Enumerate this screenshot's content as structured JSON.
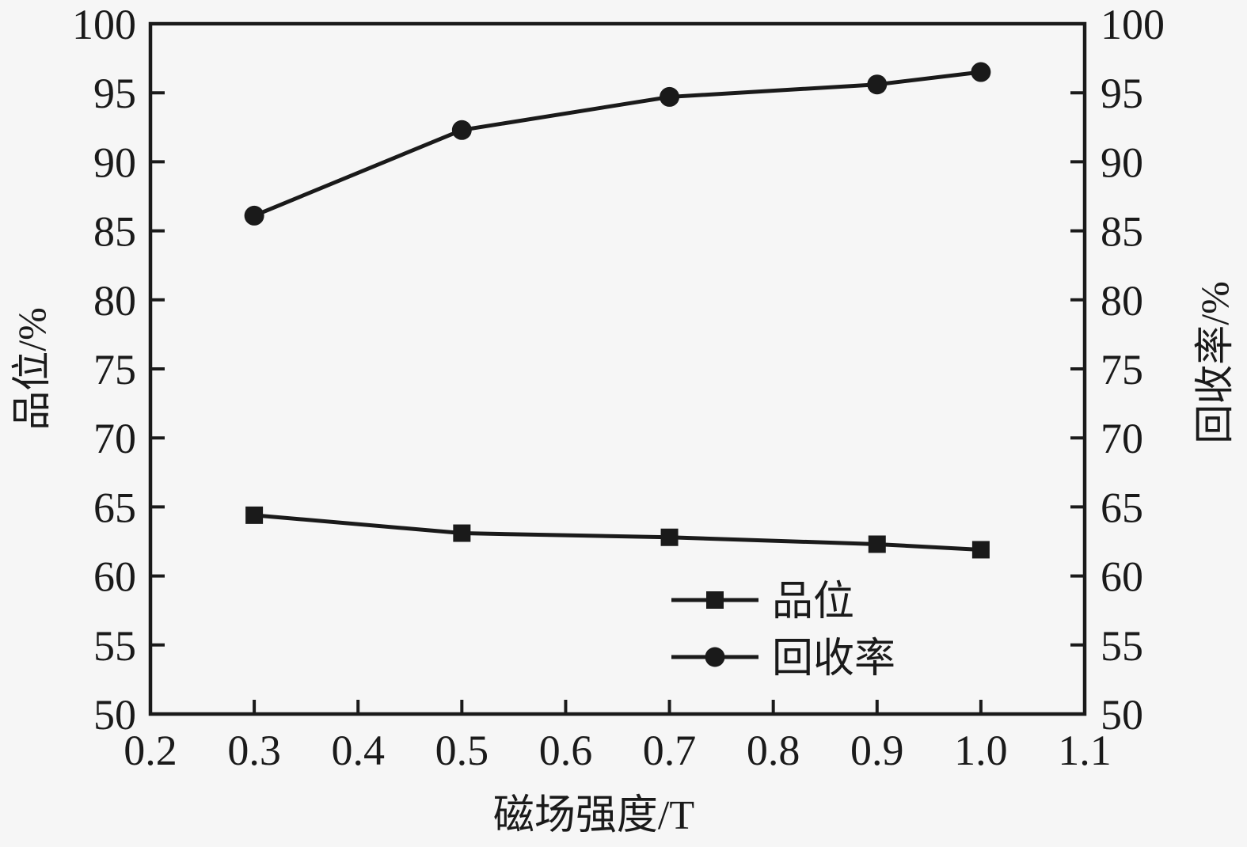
{
  "figure": {
    "bg_color": "#f6f6f6",
    "fg_color": "#1a1a1a"
  },
  "chart_data": {
    "type": "line",
    "title": "",
    "xlabel": "磁场强度/T",
    "ylabel_left": "品位/%",
    "ylabel_right": "回收率/%",
    "xlim": [
      0.2,
      1.1
    ],
    "ylim_left": [
      50,
      100
    ],
    "ylim_right": [
      50,
      100
    ],
    "x_tick_labels": [
      "0.2",
      "0.3",
      "0.4",
      "0.5",
      "0.6",
      "0.7",
      "0.8",
      "0.9",
      "1.0",
      "1.1"
    ],
    "y_tick_labels_left": [
      "50",
      "55",
      "60",
      "65",
      "70",
      "75",
      "80",
      "85",
      "90",
      "95",
      "100"
    ],
    "y_tick_labels_right": [
      "50",
      "55",
      "60",
      "65",
      "70",
      "75",
      "80",
      "85",
      "90",
      "95",
      "100"
    ],
    "x": [
      0.3,
      0.5,
      0.7,
      0.9,
      1.0
    ],
    "series": [
      {
        "name": "品位",
        "axis": "left",
        "marker": "square",
        "color": "#1a1a1a",
        "values": [
          64.4,
          63.1,
          62.8,
          62.3,
          61.9
        ]
      },
      {
        "name": "回收率",
        "axis": "right",
        "marker": "circle",
        "color": "#1a1a1a",
        "values": [
          86.1,
          92.3,
          94.7,
          95.6,
          96.5
        ]
      }
    ],
    "grid": false,
    "legend_position": "inside-lower-right",
    "tick_style": "inward"
  }
}
